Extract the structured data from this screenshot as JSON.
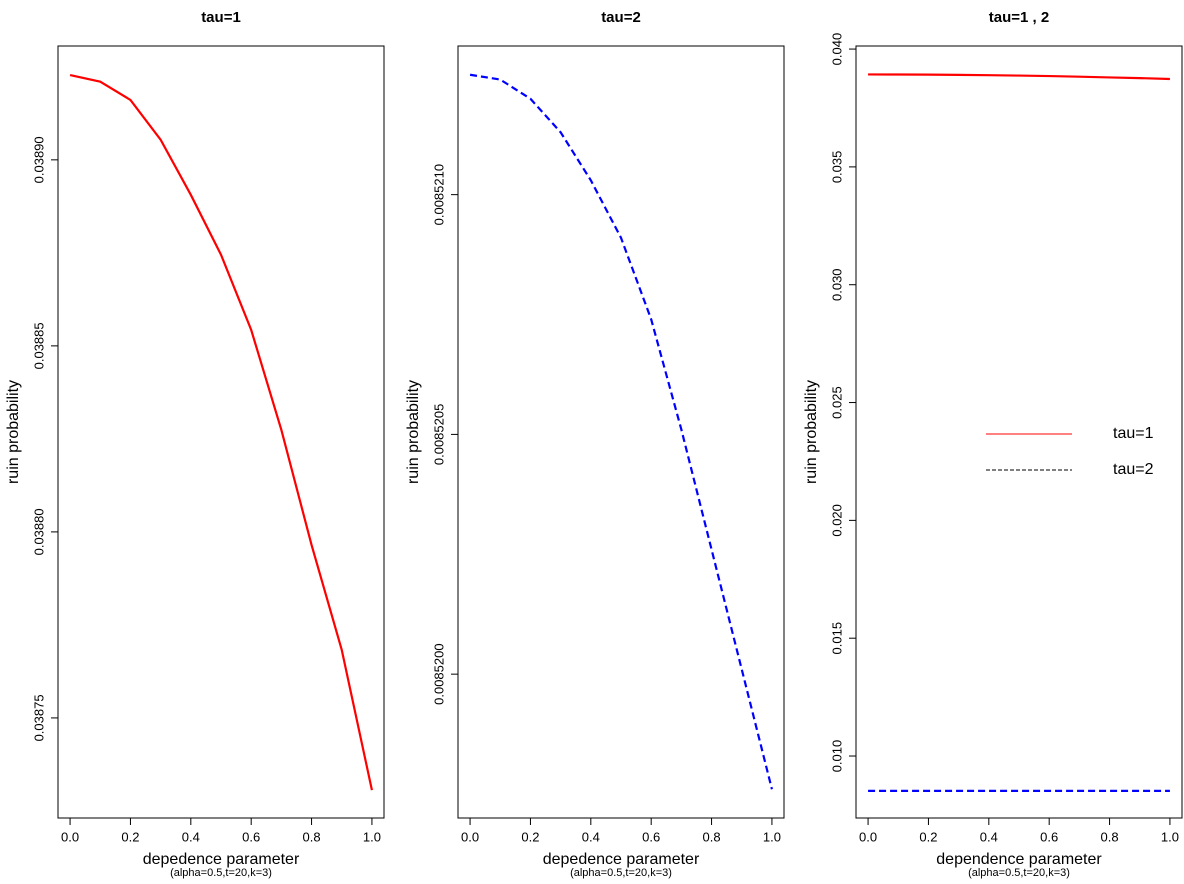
{
  "chart_data": [
    {
      "type": "line",
      "title": "tau=1",
      "xlabel": "depedence parameter",
      "subtitle": "(alpha=0.5,t=20,k=3)",
      "ylabel": "ruin probability",
      "x": [
        0,
        0.1,
        0.2,
        0.3,
        0.4,
        0.5,
        0.6,
        0.7,
        0.8,
        0.9,
        1.0
      ],
      "series": [
        {
          "name": "tau=1",
          "color": "#ff0000",
          "line_style": "solid",
          "values": [
            0.0389228,
            0.038921,
            0.0389161,
            0.0389054,
            0.0388906,
            0.0388745,
            0.0388543,
            0.0388274,
            0.0387965,
            0.0387683,
            0.0387306
          ]
        }
      ],
      "xlim": [
        -0.04,
        1.04
      ],
      "ylim": [
        0.0387231,
        0.0389306
      ],
      "xticks": [
        {
          "value": 0,
          "label": "0.0"
        },
        {
          "value": 0.2,
          "label": "0.2"
        },
        {
          "value": 0.4,
          "label": "0.4"
        },
        {
          "value": 0.6,
          "label": "0.6"
        },
        {
          "value": 0.8,
          "label": "0.8"
        },
        {
          "value": 1,
          "label": "1.0"
        }
      ],
      "yticks": [
        {
          "value": 0.03875,
          "label": "0.03875"
        },
        {
          "value": 0.0388,
          "label": "0.03880"
        },
        {
          "value": 0.03885,
          "label": "0.03885"
        },
        {
          "value": 0.0389,
          "label": "0.03890"
        }
      ]
    },
    {
      "type": "line",
      "title": "tau=2",
      "xlabel": "depedence parameter",
      "subtitle": "(alpha=0.5,t=20,k=3)",
      "ylabel": "ruin probability",
      "x": [
        0,
        0.1,
        0.2,
        0.3,
        0.4,
        0.5,
        0.6,
        0.7,
        0.8,
        0.9,
        1.0
      ],
      "series": [
        {
          "name": "tau=2",
          "color": "#0000ff",
          "line_style": "dashed",
          "values": [
            0.00852125,
            0.00852124,
            0.0085212,
            0.00852113,
            0.00852103,
            0.00852091,
            0.00852074,
            0.00852051,
            0.00852026,
            0.00852001,
            0.00851976
          ]
        }
      ],
      "xlim": [
        -0.04,
        1.04
      ],
      "ylim": [
        0.0085197,
        0.00852131
      ],
      "xticks": [
        {
          "value": 0,
          "label": "0.0"
        },
        {
          "value": 0.2,
          "label": "0.2"
        },
        {
          "value": 0.4,
          "label": "0.4"
        },
        {
          "value": 0.6,
          "label": "0.6"
        },
        {
          "value": 0.8,
          "label": "0.8"
        },
        {
          "value": 1,
          "label": "1.0"
        }
      ],
      "yticks": [
        {
          "value": 0.00852,
          "label": "0.0085200"
        },
        {
          "value": 0.0085205,
          "label": "0.0085205"
        },
        {
          "value": 0.008521,
          "label": "0.0085210"
        }
      ]
    },
    {
      "type": "line",
      "title": "tau=1 , 2",
      "xlabel": "dependence parameter",
      "subtitle": "(alpha=0.5,t=20,k=3)",
      "ylabel": "ruin probability",
      "x": [
        0,
        0.1,
        0.2,
        0.3,
        0.4,
        0.5,
        0.6,
        0.7,
        0.8,
        0.9,
        1.0
      ],
      "series": [
        {
          "name": "tau=1",
          "color": "#ff0000",
          "legend_color": "#ff0000",
          "line_style": "solid",
          "values": [
            0.0389228,
            0.038921,
            0.0389161,
            0.0389054,
            0.0388906,
            0.0388745,
            0.0388543,
            0.0388274,
            0.0387965,
            0.0387683,
            0.0387306
          ]
        },
        {
          "name": "tau=2",
          "color": "#0000ff",
          "legend_color": "#000000",
          "line_style": "dashed",
          "values": [
            0.00852125,
            0.00852124,
            0.0085212,
            0.00852113,
            0.00852103,
            0.00852091,
            0.00852074,
            0.00852051,
            0.00852026,
            0.00852001,
            0.00851976
          ]
        }
      ],
      "legend": "right",
      "xlim": [
        -0.04,
        1.04
      ],
      "ylim": [
        0.00737,
        0.04013
      ],
      "xticks": [
        {
          "value": 0,
          "label": "0.0"
        },
        {
          "value": 0.2,
          "label": "0.2"
        },
        {
          "value": 0.4,
          "label": "0.4"
        },
        {
          "value": 0.6,
          "label": "0.6"
        },
        {
          "value": 0.8,
          "label": "0.8"
        },
        {
          "value": 1,
          "label": "1.0"
        }
      ],
      "yticks": [
        {
          "value": 0.01,
          "label": "0.010"
        },
        {
          "value": 0.015,
          "label": "0.015"
        },
        {
          "value": 0.02,
          "label": "0.020"
        },
        {
          "value": 0.025,
          "label": "0.025"
        },
        {
          "value": 0.03,
          "label": "0.030"
        },
        {
          "value": 0.035,
          "label": "0.035"
        },
        {
          "value": 0.04,
          "label": "0.040"
        }
      ]
    }
  ]
}
